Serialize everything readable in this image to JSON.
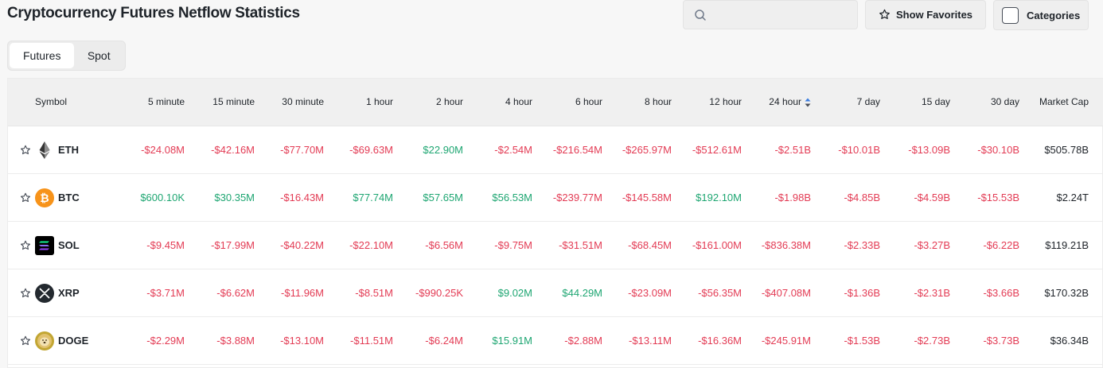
{
  "header": {
    "title": "Cryptocurrency Futures Netflow Statistics",
    "search_placeholder": "",
    "favorites_label": "Show Favorites",
    "categories_label": "Categories"
  },
  "tabs": [
    {
      "label": "Futures",
      "active": true
    },
    {
      "label": "Spot",
      "active": false
    }
  ],
  "table": {
    "columns": [
      "Symbol",
      "5 minute",
      "15 minute",
      "30 minute",
      "1 hour",
      "2 hour",
      "4 hour",
      "6 hour",
      "8 hour",
      "12 hour",
      "24 hour",
      "7 day",
      "15 day",
      "30 day",
      "Market Cap"
    ],
    "sorted_column": "24 hour",
    "rows": [
      {
        "symbol": "ETH",
        "icon": "eth-icon",
        "values": [
          "-$24.08M",
          "-$42.16M",
          "-$77.70M",
          "-$69.63M",
          "$22.90M",
          "-$2.54M",
          "-$216.54M",
          "-$265.97M",
          "-$512.61M",
          "-$2.51B",
          "-$10.01B",
          "-$13.09B",
          "-$30.10B"
        ],
        "market_cap": "$505.78B"
      },
      {
        "symbol": "BTC",
        "icon": "btc-icon",
        "values": [
          "$600.10K",
          "$30.35M",
          "-$16.43M",
          "$77.74M",
          "$57.65M",
          "$56.53M",
          "-$239.77M",
          "-$145.58M",
          "$192.10M",
          "-$1.98B",
          "-$4.85B",
          "-$4.59B",
          "-$15.53B"
        ],
        "market_cap": "$2.24T"
      },
      {
        "symbol": "SOL",
        "icon": "sol-icon",
        "values": [
          "-$9.45M",
          "-$17.99M",
          "-$40.22M",
          "-$22.10M",
          "-$6.56M",
          "-$9.75M",
          "-$31.51M",
          "-$68.45M",
          "-$161.00M",
          "-$836.38M",
          "-$2.33B",
          "-$3.27B",
          "-$6.22B"
        ],
        "market_cap": "$119.21B"
      },
      {
        "symbol": "XRP",
        "icon": "xrp-icon",
        "values": [
          "-$3.71M",
          "-$6.62M",
          "-$11.96M",
          "-$8.51M",
          "-$990.25K",
          "$9.02M",
          "$44.29M",
          "-$23.09M",
          "-$56.35M",
          "-$407.08M",
          "-$1.36B",
          "-$2.31B",
          "-$3.66B"
        ],
        "market_cap": "$170.32B"
      },
      {
        "symbol": "DOGE",
        "icon": "doge-icon",
        "values": [
          "-$2.29M",
          "-$3.88M",
          "-$13.10M",
          "-$11.51M",
          "-$6.24M",
          "$15.91M",
          "-$2.88M",
          "-$13.11M",
          "-$16.36M",
          "-$245.91M",
          "-$1.53B",
          "-$2.73B",
          "-$3.73B"
        ],
        "market_cap": "$36.34B"
      }
    ]
  },
  "colors": {
    "negative": "#e33b54",
    "positive": "#1ea672",
    "sort_active": "#3b7de0"
  }
}
